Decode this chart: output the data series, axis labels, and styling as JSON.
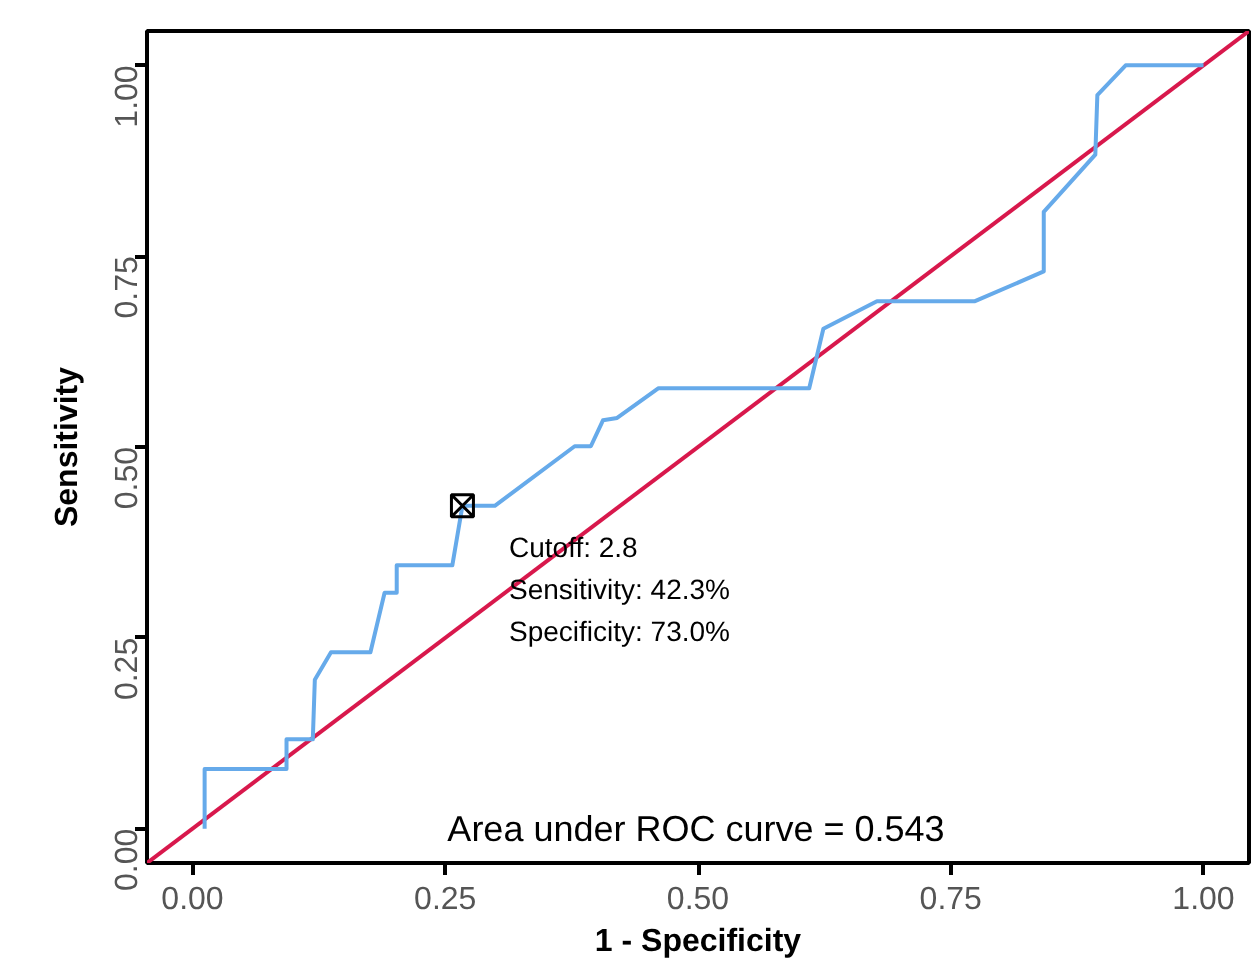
{
  "chart_data": {
    "type": "line",
    "xlabel": "1 - Specificity",
    "ylabel": "Sensitivity",
    "xlim": [
      -0.045,
      1.045
    ],
    "ylim": [
      -0.045,
      1.045
    ],
    "xticks": [
      {
        "value": 0,
        "label": "0.00"
      },
      {
        "value": 0.25,
        "label": "0.25"
      },
      {
        "value": 0.5,
        "label": "0.50"
      },
      {
        "value": 0.75,
        "label": "0.75"
      },
      {
        "value": 1,
        "label": "1.00"
      }
    ],
    "yticks": [
      {
        "value": 0,
        "label": "0.00"
      },
      {
        "value": 0.25,
        "label": "0.25"
      },
      {
        "value": 0.5,
        "label": "0.50"
      },
      {
        "value": 0.75,
        "label": "0.75"
      },
      {
        "value": 1,
        "label": "1.00"
      }
    ],
    "grid": false,
    "series": [
      {
        "color": "#d8184c",
        "x": [
          -0.045,
          1.045
        ],
        "values": [
          -0.045,
          1.045
        ]
      },
      {
        "color": "#66aaea",
        "x": [
          0.012,
          0.012,
          0.093,
          0.093,
          0.119,
          0.121,
          0.137,
          0.176,
          0.19,
          0.202,
          0.202,
          0.257,
          0.267,
          0.283,
          0.299,
          0.378,
          0.394,
          0.406,
          0.42,
          0.461,
          0.61,
          0.624,
          0.677,
          0.774,
          0.842,
          0.842,
          0.893,
          0.895,
          0.923,
          1.0
        ],
        "values": [
          0.0,
          0.078,
          0.078,
          0.117,
          0.117,
          0.195,
          0.231,
          0.231,
          0.309,
          0.309,
          0.345,
          0.345,
          0.423,
          0.423,
          0.423,
          0.501,
          0.501,
          0.535,
          0.538,
          0.577,
          0.577,
          0.655,
          0.691,
          0.691,
          0.73,
          0.808,
          0.883,
          0.961,
          1.0,
          1.0
        ]
      },
      {
        "type": "scatter",
        "color": "#000000",
        "x": [
          0.267
        ],
        "values": [
          0.423
        ]
      }
    ],
    "annotations": [
      "Cutoff: 2.8",
      "Sensitivity: 42.3%",
      "Specificity: 73.0%",
      "Area under ROC curve =  0.543"
    ]
  }
}
